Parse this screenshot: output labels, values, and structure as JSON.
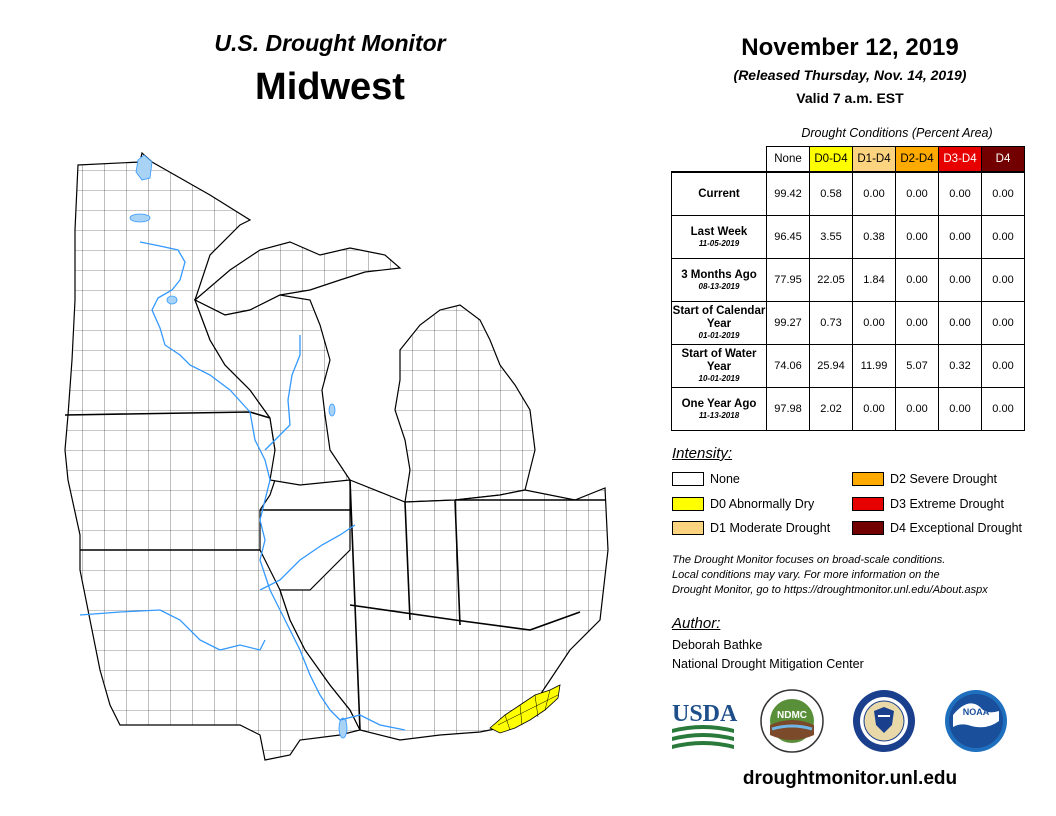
{
  "header": {
    "title": "U.S. Drought Monitor",
    "region": "Midwest",
    "date": "November 12, 2019",
    "released": "(Released Thursday, Nov. 14, 2019)",
    "valid": "Valid 7 a.m. EST"
  },
  "table": {
    "caption": "Drought Conditions (Percent Area)",
    "columns": [
      {
        "label": "None",
        "color": "#ffffff",
        "text_color": "#000000"
      },
      {
        "label": "D0-D4",
        "color": "#ffff00",
        "text_color": "#000000"
      },
      {
        "label": "D1-D4",
        "color": "#fcd37f",
        "text_color": "#000000"
      },
      {
        "label": "D2-D4",
        "color": "#ffaa00",
        "text_color": "#000000"
      },
      {
        "label": "D3-D4",
        "color": "#e60000",
        "text_color": "#ffffff"
      },
      {
        "label": "D4",
        "color": "#730000",
        "text_color": "#ffffff"
      }
    ],
    "rows": [
      {
        "label": "Current",
        "sub": "",
        "values": [
          "99.42",
          "0.58",
          "0.00",
          "0.00",
          "0.00",
          "0.00"
        ]
      },
      {
        "label": "Last Week",
        "sub": "11-05-2019",
        "values": [
          "96.45",
          "3.55",
          "0.38",
          "0.00",
          "0.00",
          "0.00"
        ]
      },
      {
        "label": "3 Months Ago",
        "sub": "08-13-2019",
        "values": [
          "77.95",
          "22.05",
          "1.84",
          "0.00",
          "0.00",
          "0.00"
        ]
      },
      {
        "label": "Start of Calendar Year",
        "sub": "01-01-2019",
        "values": [
          "99.27",
          "0.73",
          "0.00",
          "0.00",
          "0.00",
          "0.00"
        ]
      },
      {
        "label": "Start of Water Year",
        "sub": "10-01-2019",
        "values": [
          "74.06",
          "25.94",
          "11.99",
          "5.07",
          "0.32",
          "0.00"
        ]
      },
      {
        "label": "One Year Ago",
        "sub": "11-13-2018",
        "values": [
          "97.98",
          "2.02",
          "0.00",
          "0.00",
          "0.00",
          "0.00"
        ]
      }
    ]
  },
  "legend": {
    "title": "Intensity:",
    "items": [
      {
        "label": "None",
        "color": "#ffffff"
      },
      {
        "label": "D0 Abnormally Dry",
        "color": "#ffff00"
      },
      {
        "label": "D1 Moderate Drought",
        "color": "#fcd37f"
      },
      {
        "label": "D2 Severe Drought",
        "color": "#ffaa00"
      },
      {
        "label": "D3 Extreme Drought",
        "color": "#e60000"
      },
      {
        "label": "D4 Exceptional Drought",
        "color": "#730000"
      }
    ]
  },
  "note": {
    "line1": "The Drought Monitor focuses on broad-scale conditions.",
    "line2": "Local conditions may vary. For more information on the",
    "line3": "Drought Monitor, go to https://droughtmonitor.unl.edu/About.aspx"
  },
  "author": {
    "title": "Author:",
    "name": "Deborah Bathke",
    "org": "National Drought Mitigation Center"
  },
  "logos": {
    "usda_text": "USDA",
    "ndmc_text": "NDMC",
    "noaa_text": "NOAA"
  },
  "website": "droughtmonitor.unl.edu",
  "map": {
    "d0_color": "#ffff00",
    "water_color": "#a9d3f5",
    "river_color": "#3399ff",
    "land_color": "#ffffff",
    "line_color": "#000000"
  }
}
